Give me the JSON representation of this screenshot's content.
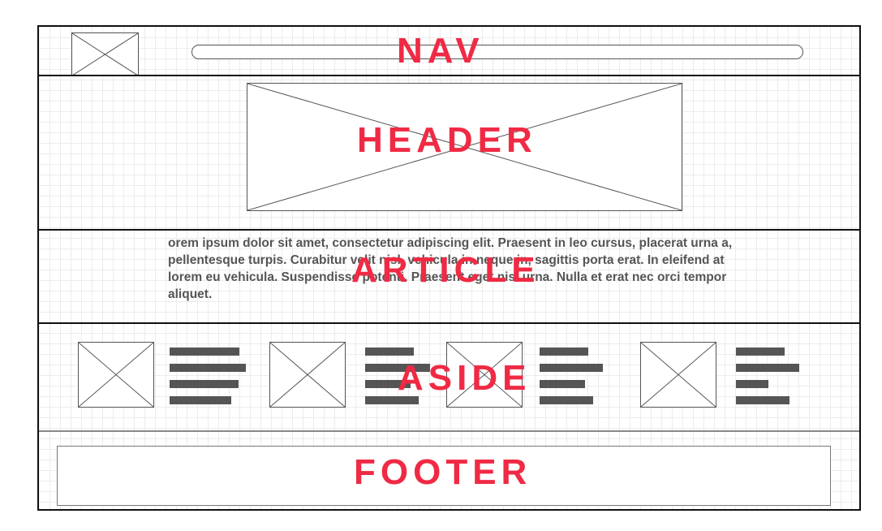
{
  "nav": {
    "label": "NAV"
  },
  "header": {
    "label": "HEADER"
  },
  "article": {
    "label": "ARTICLE",
    "text": "orem ipsum dolor sit amet, consectetur adipiscing elit. Praesent in leo cursus, placerat urna a, pellentesque turpis. Curabitur velit nisl, vehicula in neque in, sagittis porta erat. In eleifend at lorem eu vehicula. Suspendisse potenti. Praesent eget nisl urna. Nulla et erat nec orci tempor aliquet."
  },
  "aside": {
    "label": "ASIDE",
    "card_count": 4
  },
  "footer": {
    "label": "FOOTER"
  },
  "colors": {
    "label": "#f02a44",
    "wireframe": "#555555",
    "grid": "#ececec"
  },
  "icons": [
    "image-placeholder-icon"
  ]
}
